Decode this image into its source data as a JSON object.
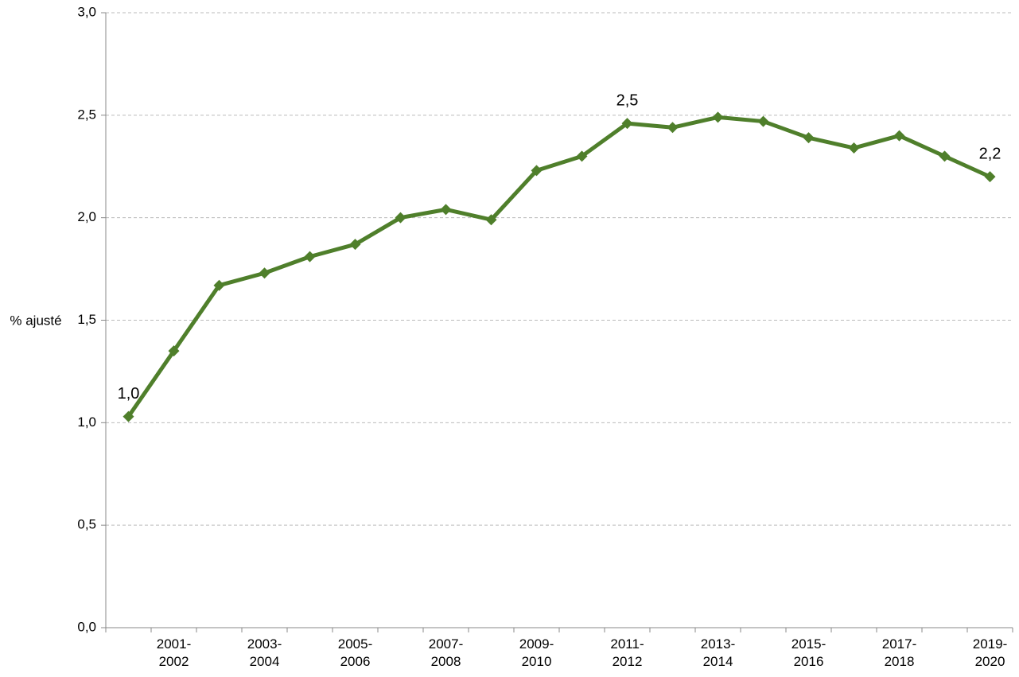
{
  "chart_data": {
    "type": "line",
    "y_label": "% ajusté",
    "categories": [
      null,
      "2001-2002",
      null,
      "2003-2004",
      null,
      "2005-2006",
      null,
      "2007-2008",
      null,
      "2009-2010",
      null,
      "2011-2012",
      null,
      "2013-2014",
      null,
      "2015-2016",
      null,
      "2017-2018",
      null,
      "2019-2020"
    ],
    "values": [
      1.03,
      1.35,
      1.67,
      1.73,
      1.81,
      1.87,
      2.0,
      2.04,
      1.99,
      2.23,
      2.3,
      2.46,
      2.44,
      2.49,
      2.47,
      2.39,
      2.34,
      2.4,
      2.3,
      2.2
    ],
    "value_labels": [
      "1,0",
      null,
      null,
      null,
      null,
      null,
      null,
      null,
      null,
      null,
      null,
      "2,5",
      null,
      null,
      null,
      null,
      null,
      null,
      null,
      "2,2"
    ],
    "color": "#4f7f2b",
    "ylim": [
      0,
      3
    ],
    "yticks": [
      {
        "value": 0,
        "label": "0,0"
      },
      {
        "value": 0.5,
        "label": "0,5"
      },
      {
        "value": 1,
        "label": "1,0"
      },
      {
        "value": 1.5,
        "label": "1,5"
      },
      {
        "value": 2,
        "label": "2,0"
      },
      {
        "value": 2.5,
        "label": "2,5"
      },
      {
        "value": 3,
        "label": "3,0"
      }
    ],
    "grid": true
  }
}
